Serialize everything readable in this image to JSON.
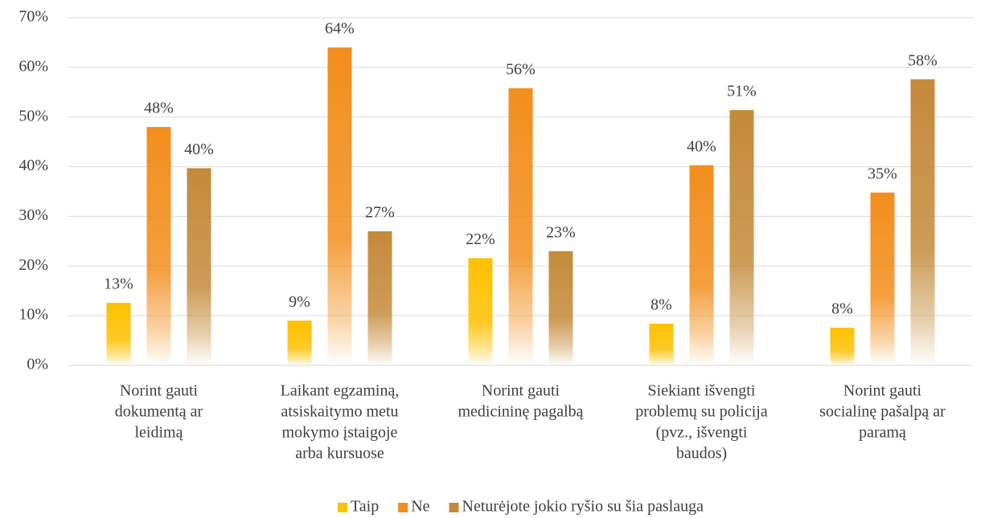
{
  "chart_data": {
    "type": "bar",
    "categories": [
      [
        "Norint gauti",
        "dokumentą ar",
        "leidimą"
      ],
      [
        "Laikant egzaminą,",
        "atsiskaitymo metu",
        "mokymo įstaigoje",
        "arba kursuose"
      ],
      [
        "Norint gauti",
        "medicininę pagalbą"
      ],
      [
        "Siekiant išvengti",
        "problemų su policija",
        "(pvz., išvengti",
        "baudos)"
      ],
      [
        "Norint gauti",
        "socialinę pašalpą ar",
        "paramą"
      ]
    ],
    "series": [
      {
        "name": "Taip",
        "color": "#ffc000",
        "values": [
          12.6,
          9,
          21.6,
          8.4,
          7.6
        ],
        "value_labels": [
          "13%",
          "9%",
          "22%",
          "8%",
          "8%"
        ]
      },
      {
        "name": "Ne",
        "color": "#f28e1c",
        "values": [
          48,
          64,
          55.8,
          40.3,
          34.8
        ],
        "value_labels": [
          "48%",
          "64%",
          "56%",
          "40%",
          "35%"
        ]
      },
      {
        "name": "Neturėjote jokio ryšio su šia paslauga",
        "color": "#c48a3a",
        "values": [
          39.7,
          27,
          23,
          51.4,
          57.6
        ],
        "value_labels": [
          "40%",
          "27%",
          "23%",
          "51%",
          "58%"
        ]
      }
    ],
    "ylim": [
      0,
      70
    ],
    "yticks": [
      {
        "value": 0,
        "label": "0%"
      },
      {
        "value": 10,
        "label": "10%"
      },
      {
        "value": 20,
        "label": "20%"
      },
      {
        "value": 30,
        "label": "30%"
      },
      {
        "value": 40,
        "label": "40%"
      },
      {
        "value": 50,
        "label": "50%"
      },
      {
        "value": 60,
        "label": "60%"
      },
      {
        "value": 70,
        "label": "70%"
      }
    ],
    "grid": true,
    "legend": "bottom"
  }
}
